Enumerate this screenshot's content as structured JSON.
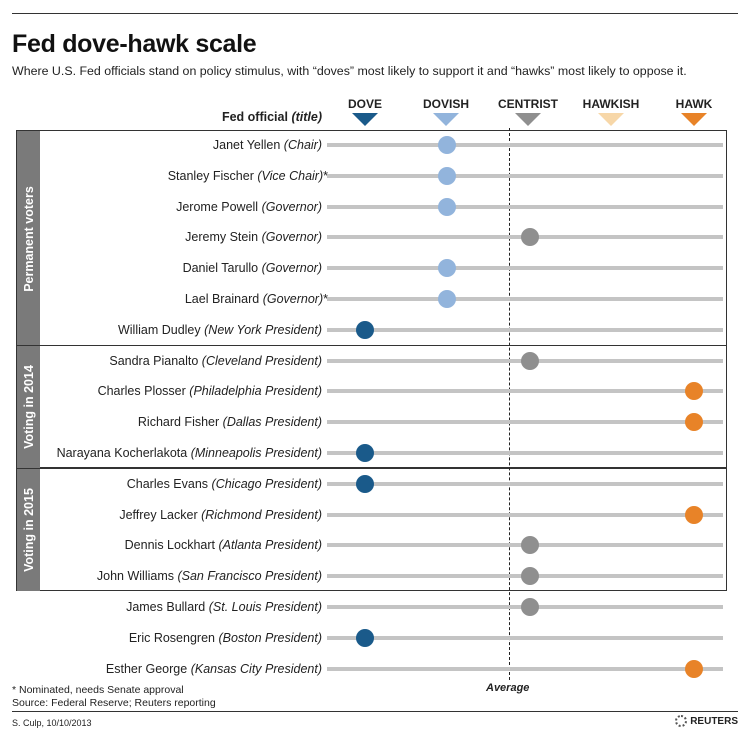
{
  "header": {
    "title": "Fed dove-hawk scale",
    "subtitle": "Where U.S. Fed officials stand on policy stimulus, with “doves” most likely to support it and “hawks” most likely to oppose it.",
    "official_col_label": "Fed official",
    "official_col_label_italic": "(title)"
  },
  "chart_data": {
    "type": "scatter",
    "title": "Fed dove-hawk scale",
    "scale": [
      {
        "name": "DOVE",
        "position": 0,
        "color": "#1a5a8a"
      },
      {
        "name": "DOVISH",
        "position": 1,
        "color": "#92b4dc"
      },
      {
        "name": "CENTRIST",
        "position": 2,
        "color": "#8f8f8f"
      },
      {
        "name": "HAWKISH",
        "position": 3,
        "color": "#f7d7a8"
      },
      {
        "name": "HAWK",
        "position": 4,
        "color": "#e88328"
      }
    ],
    "average": 1.75,
    "average_label": "Average",
    "groups": [
      {
        "label": "Permanent voters",
        "first": 0,
        "count": 7
      },
      {
        "label": "Voting in 2014",
        "first": 7,
        "count": 4
      },
      {
        "label": "Voting in 2015",
        "first": 11,
        "count": 4
      }
    ],
    "officials": [
      {
        "name": "Janet Yellen",
        "title": "(Chair)",
        "note": "",
        "position": 1
      },
      {
        "name": "Stanley Fischer",
        "title": "(Vice Chair)",
        "note": "*",
        "position": 1
      },
      {
        "name": "Jerome Powell",
        "title": "(Governor)",
        "note": "",
        "position": 1
      },
      {
        "name": "Jeremy Stein",
        "title": "(Governor)",
        "note": "",
        "position": 2
      },
      {
        "name": "Daniel Tarullo",
        "title": "(Governor)",
        "note": "",
        "position": 1
      },
      {
        "name": "Lael Brainard",
        "title": "(Governor)",
        "note": "*",
        "position": 1
      },
      {
        "name": "William Dudley",
        "title": "(New York President)",
        "note": "",
        "position": 0
      },
      {
        "name": "Sandra Pianalto",
        "title": "(Cleveland President)",
        "note": "",
        "position": 2
      },
      {
        "name": "Charles Plosser",
        "title": "(Philadelphia President)",
        "note": "",
        "position": 4
      },
      {
        "name": "Richard Fisher",
        "title": "(Dallas President)",
        "note": "",
        "position": 4
      },
      {
        "name": "Narayana Kocherlakota",
        "title": "(Minneapolis President)",
        "note": "",
        "position": 0
      },
      {
        "name": "Charles Evans",
        "title": "(Chicago President)",
        "note": "",
        "position": 0
      },
      {
        "name": "Jeffrey Lacker",
        "title": "(Richmond President)",
        "note": "",
        "position": 4
      },
      {
        "name": "Dennis Lockhart",
        "title": "(Atlanta President)",
        "note": "",
        "position": 2
      },
      {
        "name": "John Williams",
        "title": "(San Francisco President)",
        "note": "",
        "position": 2
      },
      {
        "name": "James Bullard",
        "title": "(St. Louis President)",
        "note": "",
        "position": 2
      },
      {
        "name": "Eric Rosengren",
        "title": "(Boston President)",
        "note": "",
        "position": 0
      },
      {
        "name": "Esther George",
        "title": "(Kansas City President)",
        "note": "",
        "position": 4
      }
    ]
  },
  "footer": {
    "note": "* Nominated, needs Senate approval",
    "source": "Source: Federal Reserve; Reuters reporting",
    "credit": "S. Culp, 10/10/2013",
    "logo": "REUTERS"
  }
}
